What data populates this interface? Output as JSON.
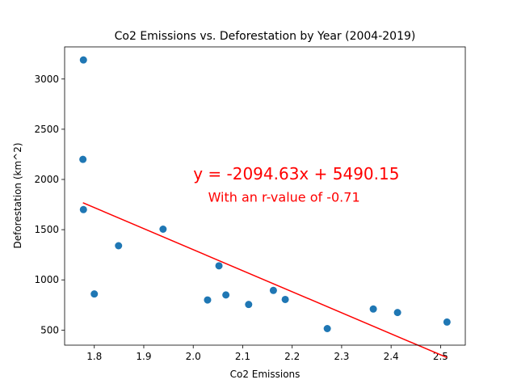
{
  "chart_data": {
    "type": "scatter",
    "title": "Co2 Emissions vs. Deforestation by Year (2004-2019)",
    "xlabel": "Co2 Emissions",
    "ylabel": "Deforestation (km^2)",
    "xlim": [
      1.74,
      2.55
    ],
    "ylim": [
      350,
      3320
    ],
    "x_ticks": [
      1.8,
      1.9,
      2.0,
      2.1,
      2.2,
      2.3,
      2.4,
      2.5
    ],
    "x_tick_labels": [
      "1.8",
      "1.9",
      "2.0",
      "2.1",
      "2.2",
      "2.3",
      "2.4",
      "2.5"
    ],
    "y_ticks": [
      500,
      1000,
      1500,
      2000,
      2500,
      3000
    ],
    "y_tick_labels": [
      "500",
      "1000",
      "1500",
      "2000",
      "2500",
      "3000"
    ],
    "grid": false,
    "point_color": "#1f77b4",
    "line_color": "#ff0000",
    "points": [
      {
        "x": 1.778,
        "y": 3190
      },
      {
        "x": 1.777,
        "y": 2200
      },
      {
        "x": 1.778,
        "y": 1700
      },
      {
        "x": 1.8,
        "y": 860
      },
      {
        "x": 1.849,
        "y": 1340
      },
      {
        "x": 1.939,
        "y": 1505
      },
      {
        "x": 2.029,
        "y": 800
      },
      {
        "x": 2.052,
        "y": 1140
      },
      {
        "x": 2.066,
        "y": 850
      },
      {
        "x": 2.112,
        "y": 755
      },
      {
        "x": 2.162,
        "y": 895
      },
      {
        "x": 2.186,
        "y": 805
      },
      {
        "x": 2.271,
        "y": 515
      },
      {
        "x": 2.364,
        "y": 710
      },
      {
        "x": 2.413,
        "y": 675
      },
      {
        "x": 2.513,
        "y": 580
      }
    ],
    "regression": {
      "slope": -2094.63,
      "intercept": 5490.15,
      "x_range": [
        1.777,
        2.513
      ],
      "equation_label": "y = -2094.63x + 5490.15",
      "r_label": "With an r-value of -0.71",
      "equation_pos": {
        "x": 2.0,
        "y": 2000
      },
      "r_pos": {
        "x": 2.03,
        "y": 1780
      }
    }
  }
}
